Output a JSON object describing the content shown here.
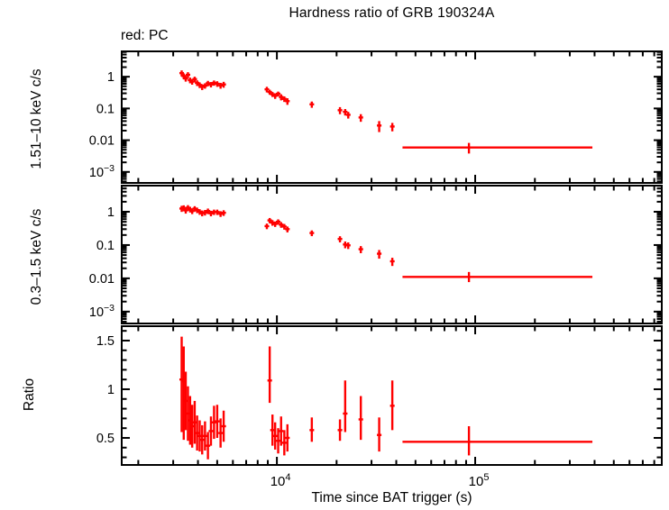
{
  "title": "Hardness ratio of GRB 190324A",
  "note": "red: PC",
  "colors": {
    "data": "#ff0000",
    "frame": "#000000",
    "background": "#ffffff"
  },
  "chart_data": {
    "type": "scatter",
    "subtype": "error-bar light curves, three stacked panels, shared log time axis",
    "x_axis": {
      "label": "Time since BAT trigger (s)",
      "scale": "log",
      "range": [
        1650,
        873000
      ],
      "ticks": [
        {
          "v": 10000,
          "label": "10^4"
        },
        {
          "v": 100000,
          "label": "10^5"
        }
      ]
    },
    "legend": {
      "position": "top-left",
      "entries": [
        {
          "label": "red: PC",
          "color": "#ff0000"
        }
      ]
    },
    "grid": false,
    "panels": [
      {
        "id": "hard-band",
        "ylabel": "1.51–10 keV c/s",
        "yscale": "log",
        "yrange": [
          0.00045,
          6.3
        ],
        "yticks": [
          {
            "v": 1,
            "label": "1"
          },
          {
            "v": 0.1,
            "label": "0.1"
          },
          {
            "v": 0.01,
            "label": "0.01"
          },
          {
            "v": 0.001,
            "label": "10^−3"
          }
        ],
        "points": [
          [
            3310,
            1.3,
            0.28,
            0.28
          ],
          [
            3390,
            1.05,
            0.22,
            0.22
          ],
          [
            3470,
            0.88,
            0.18,
            0.18
          ],
          [
            3560,
            1.15,
            0.24,
            0.24
          ],
          [
            3650,
            0.78,
            0.16,
            0.16
          ],
          [
            3740,
            0.7,
            0.14,
            0.14
          ],
          [
            3850,
            0.84,
            0.16,
            0.16
          ],
          [
            3960,
            0.64,
            0.13,
            0.13
          ],
          [
            4080,
            0.55,
            0.11,
            0.11
          ],
          [
            4200,
            0.48,
            0.1,
            0.1
          ],
          [
            4340,
            0.52,
            0.1,
            0.1
          ],
          [
            4490,
            0.62,
            0.12,
            0.12
          ],
          [
            4650,
            0.57,
            0.11,
            0.11
          ],
          [
            4820,
            0.64,
            0.12,
            0.12
          ],
          [
            5000,
            0.6,
            0.12,
            0.12
          ],
          [
            5200,
            0.53,
            0.11,
            0.11
          ],
          [
            5390,
            0.57,
            0.12,
            0.12
          ],
          [
            8900,
            0.4,
            0.08,
            0.08
          ],
          [
            9200,
            0.33,
            0.06,
            0.06
          ],
          [
            9500,
            0.28,
            0.05,
            0.05
          ],
          [
            9800,
            0.25,
            0.05,
            0.05
          ],
          [
            10150,
            0.29,
            0.05,
            0.05
          ],
          [
            10500,
            0.23,
            0.05,
            0.05
          ],
          [
            10900,
            0.2,
            0.04,
            0.04
          ],
          [
            11300,
            0.17,
            0.04,
            0.04
          ],
          [
            15000,
            0.135,
            0.03,
            0.03
          ],
          [
            20800,
            0.088,
            0.022,
            0.022
          ],
          [
            22100,
            0.078,
            0.018,
            0.018
          ],
          [
            22900,
            0.063,
            0.015,
            0.015
          ],
          [
            26500,
            0.052,
            0.014,
            0.014
          ],
          [
            32800,
            0.029,
            0.011,
            0.011
          ],
          [
            38200,
            0.027,
            0.008,
            0.008
          ],
          [
            93000,
            0.0059,
            0.0021,
            0.0023,
            43000,
            390000
          ]
        ]
      },
      {
        "id": "soft-band",
        "ylabel": "0.3–1.5 keV c/s",
        "yscale": "log",
        "yrange": [
          0.00044,
          6.1
        ],
        "yticks": [
          {
            "v": 1,
            "label": "1"
          },
          {
            "v": 0.1,
            "label": "0.1"
          },
          {
            "v": 0.01,
            "label": "0.01"
          },
          {
            "v": 0.001,
            "label": "10^−3"
          }
        ],
        "points": [
          [
            3310,
            1.25,
            0.26,
            0.26
          ],
          [
            3390,
            1.3,
            0.26,
            0.26
          ],
          [
            3470,
            1.1,
            0.22,
            0.22
          ],
          [
            3560,
            1.32,
            0.26,
            0.26
          ],
          [
            3650,
            1.18,
            0.23,
            0.23
          ],
          [
            3740,
            1.05,
            0.2,
            0.2
          ],
          [
            3850,
            1.24,
            0.23,
            0.23
          ],
          [
            3960,
            1.12,
            0.21,
            0.21
          ],
          [
            4080,
            1.0,
            0.19,
            0.19
          ],
          [
            4200,
            0.91,
            0.18,
            0.18
          ],
          [
            4340,
            0.95,
            0.18,
            0.18
          ],
          [
            4490,
            1.05,
            0.2,
            0.2
          ],
          [
            4650,
            0.9,
            0.17,
            0.17
          ],
          [
            4820,
            0.98,
            0.18,
            0.18
          ],
          [
            5000,
            0.98,
            0.18,
            0.18
          ],
          [
            5200,
            0.87,
            0.17,
            0.17
          ],
          [
            5390,
            0.93,
            0.18,
            0.18
          ],
          [
            8900,
            0.37,
            0.07,
            0.07
          ],
          [
            9200,
            0.55,
            0.1,
            0.1
          ],
          [
            9500,
            0.47,
            0.09,
            0.09
          ],
          [
            9800,
            0.43,
            0.08,
            0.08
          ],
          [
            10150,
            0.5,
            0.09,
            0.09
          ],
          [
            10500,
            0.41,
            0.08,
            0.08
          ],
          [
            10900,
            0.36,
            0.07,
            0.07
          ],
          [
            11300,
            0.3,
            0.06,
            0.06
          ],
          [
            15000,
            0.23,
            0.045,
            0.045
          ],
          [
            20800,
            0.152,
            0.032,
            0.032
          ],
          [
            22100,
            0.104,
            0.024,
            0.024
          ],
          [
            22900,
            0.098,
            0.022,
            0.022
          ],
          [
            26500,
            0.075,
            0.018,
            0.018
          ],
          [
            32800,
            0.055,
            0.016,
            0.016
          ],
          [
            38200,
            0.0325,
            0.009,
            0.009
          ],
          [
            93000,
            0.011,
            0.0033,
            0.0045,
            43000,
            390000
          ]
        ]
      },
      {
        "id": "ratio",
        "ylabel": "Ratio",
        "yscale": "linear",
        "yrange": [
          0.222,
          1.648
        ],
        "yticks": [
          {
            "v": 1.5,
            "label": "1.5"
          },
          {
            "v": 1,
            "label": "1"
          },
          {
            "v": 0.5,
            "label": "0.5"
          }
        ],
        "points": [
          [
            3310,
            1.1,
            0.54,
            0.44
          ],
          [
            3390,
            1.08,
            0.6,
            0.36
          ],
          [
            3470,
            0.88,
            0.3,
            0.3
          ],
          [
            3560,
            0.75,
            0.28,
            0.28
          ],
          [
            3650,
            0.68,
            0.25,
            0.25
          ],
          [
            3740,
            0.62,
            0.22,
            0.22
          ],
          [
            3850,
            0.66,
            0.22,
            0.22
          ],
          [
            3960,
            0.55,
            0.18,
            0.18
          ],
          [
            4080,
            0.52,
            0.16,
            0.16
          ],
          [
            4200,
            0.48,
            0.15,
            0.15
          ],
          [
            4340,
            0.52,
            0.15,
            0.15
          ],
          [
            4490,
            0.42,
            0.14,
            0.14
          ],
          [
            4650,
            0.57,
            0.15,
            0.15
          ],
          [
            4820,
            0.66,
            0.17,
            0.17
          ],
          [
            5000,
            0.67,
            0.17,
            0.17
          ],
          [
            5200,
            0.55,
            0.15,
            0.15
          ],
          [
            5390,
            0.62,
            0.16,
            0.16
          ],
          [
            9200,
            1.09,
            0.23,
            0.35
          ],
          [
            9500,
            0.58,
            0.16,
            0.16
          ],
          [
            9800,
            0.52,
            0.14,
            0.14
          ],
          [
            10150,
            0.47,
            0.13,
            0.13
          ],
          [
            10500,
            0.57,
            0.15,
            0.15
          ],
          [
            10900,
            0.45,
            0.13,
            0.13
          ],
          [
            11300,
            0.5,
            0.14,
            0.14
          ],
          [
            15000,
            0.58,
            0.12,
            0.13
          ],
          [
            20800,
            0.58,
            0.11,
            0.11
          ],
          [
            22100,
            0.75,
            0.19,
            0.34
          ],
          [
            26500,
            0.69,
            0.21,
            0.24
          ],
          [
            32800,
            0.53,
            0.17,
            0.18
          ],
          [
            38200,
            0.83,
            0.25,
            0.26
          ],
          [
            93000,
            0.46,
            0.14,
            0.16,
            43000,
            390000
          ]
        ]
      }
    ]
  }
}
